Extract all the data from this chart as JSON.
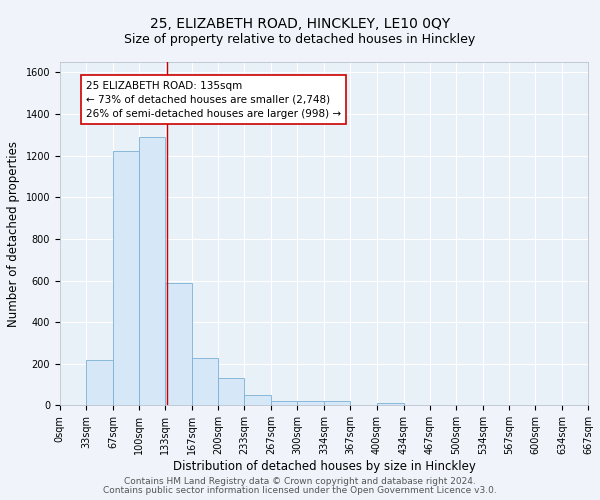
{
  "title": "25, ELIZABETH ROAD, HINCKLEY, LE10 0QY",
  "subtitle": "Size of property relative to detached houses in Hinckley",
  "xlabel": "Distribution of detached houses by size in Hinckley",
  "ylabel": "Number of detached properties",
  "bar_edges": [
    0,
    33,
    67,
    100,
    133,
    167,
    200,
    233,
    267,
    300,
    334,
    367,
    400,
    434,
    467,
    500,
    534,
    567,
    600,
    634,
    667
  ],
  "bar_heights": [
    0,
    220,
    1220,
    1290,
    590,
    230,
    130,
    50,
    20,
    20,
    20,
    0,
    10,
    0,
    0,
    0,
    0,
    0,
    0,
    0
  ],
  "bar_facecolor": "#d6e8f7",
  "bar_edgecolor": "#7ab0d4",
  "vline_x": 135,
  "vline_color": "#cc0000",
  "annotation_text": "25 ELIZABETH ROAD: 135sqm\n← 73% of detached houses are smaller (2,748)\n26% of semi-detached houses are larger (998) →",
  "annotation_box_edgecolor": "#cc0000",
  "annotation_box_facecolor": "#ffffff",
  "ylim": [
    0,
    1650
  ],
  "yticks": [
    0,
    200,
    400,
    600,
    800,
    1000,
    1200,
    1400,
    1600
  ],
  "tick_labels": [
    "0sqm",
    "33sqm",
    "67sqm",
    "100sqm",
    "133sqm",
    "167sqm",
    "200sqm",
    "233sqm",
    "267sqm",
    "300sqm",
    "334sqm",
    "367sqm",
    "400sqm",
    "434sqm",
    "467sqm",
    "500sqm",
    "534sqm",
    "567sqm",
    "600sqm",
    "634sqm",
    "667sqm"
  ],
  "footer_line1": "Contains HM Land Registry data © Crown copyright and database right 2024.",
  "footer_line2": "Contains public sector information licensed under the Open Government Licence v3.0.",
  "bg_color": "#f0f4fa",
  "plot_bg_color": "#e8f0f8",
  "grid_color": "#ffffff",
  "title_fontsize": 10,
  "subtitle_fontsize": 9,
  "axis_label_fontsize": 8.5,
  "tick_fontsize": 7,
  "annotation_fontsize": 7.5,
  "footer_fontsize": 6.5
}
